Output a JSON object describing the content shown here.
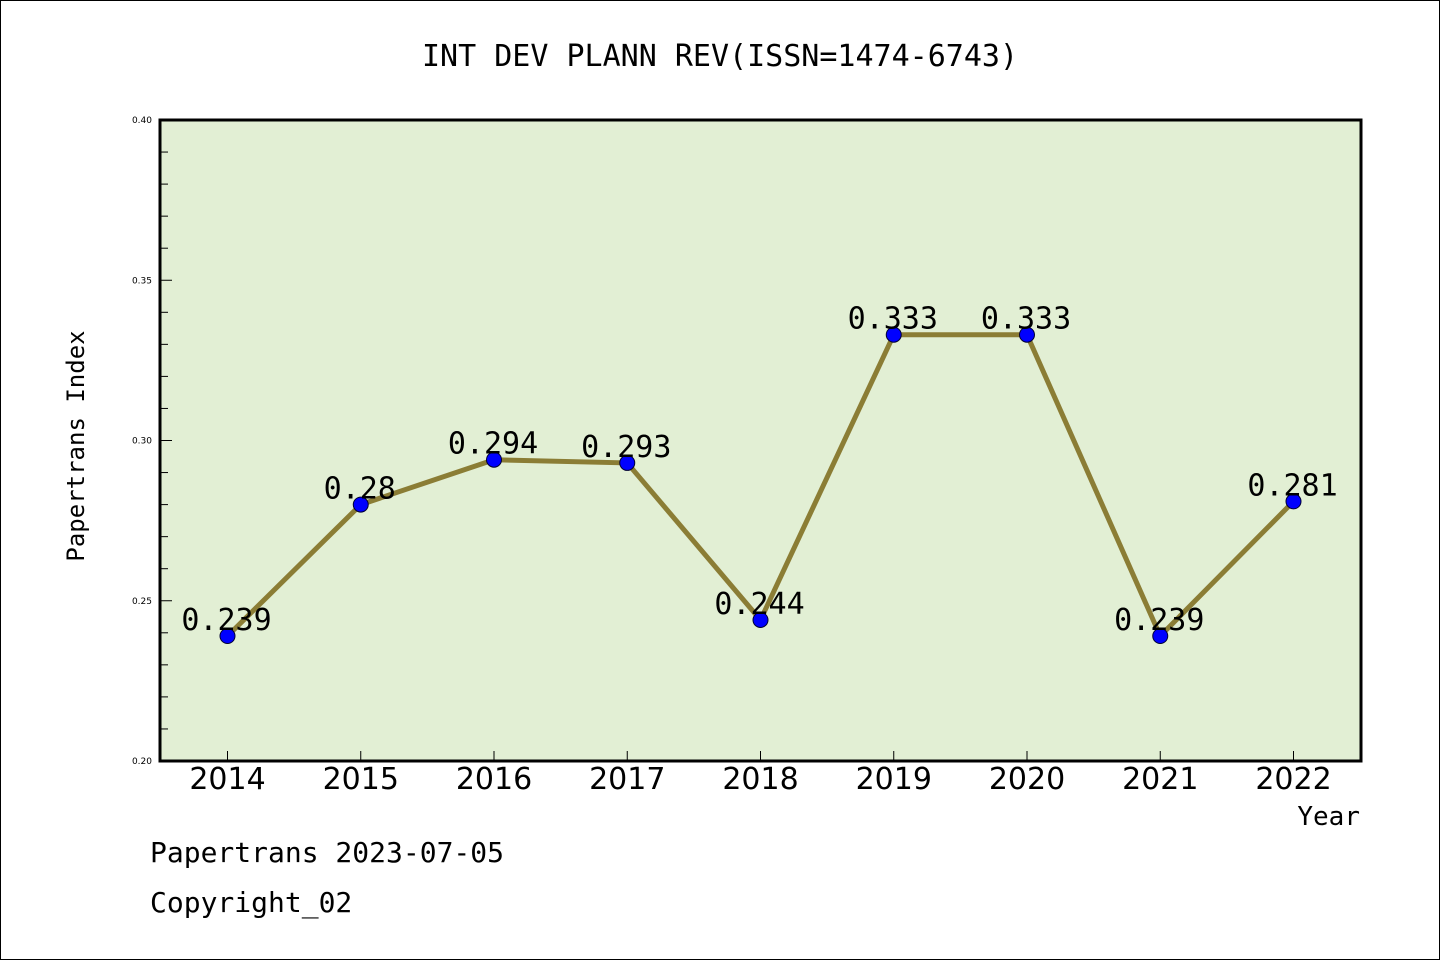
{
  "chart_data": {
    "type": "line",
    "title": "INT DEV PLANN REV(ISSN=1474-6743)",
    "xlabel": "Year",
    "ylabel": "Papertrans Index",
    "categories": [
      "2014",
      "2015",
      "2016",
      "2017",
      "2018",
      "2019",
      "2020",
      "2021",
      "2022"
    ],
    "series": [
      {
        "values": [
          0.239,
          0.28,
          0.294,
          0.293,
          0.244,
          0.333,
          0.333,
          0.239,
          0.281
        ],
        "data_labels": [
          "0.239",
          "0.28",
          "0.294",
          "0.293",
          "0.244",
          "0.333",
          "0.333",
          "0.239",
          "0.281"
        ]
      }
    ],
    "ylim": [
      0.2,
      0.4
    ],
    "yticks": [
      "0.20",
      "0.25",
      "0.30",
      "0.35",
      "0.40"
    ],
    "grid": false,
    "colors": {
      "plot_background": "#e2efd4",
      "line": "#8b7d35",
      "marker": "#0000ff"
    }
  },
  "footer": {
    "line1": "Papertrans 2023-07-05",
    "line2": "Copyright_02"
  }
}
